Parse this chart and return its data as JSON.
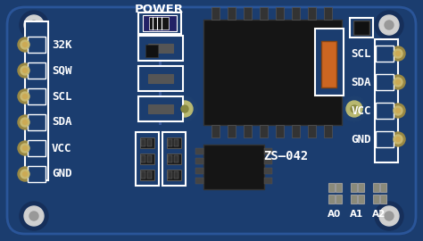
{
  "board_color": "#1b3d6f",
  "board_border": "#2255aa",
  "pin_gold": "#c8b870",
  "pin_light": "#d4c88a",
  "white": "#ffffff",
  "chip_dark": "#151515",
  "chip_gray": "#2a2a2a",
  "orange": "#cc6622",
  "gray_pad": "#8a8a7a",
  "gray_light": "#aaaaaa",
  "left_pins": [
    "32K",
    "SQW",
    "SCL",
    "SDA",
    "VCC",
    "GND"
  ],
  "right_pins": [
    "SCL",
    "SDA",
    "VCC",
    "GND"
  ],
  "figsize": [
    4.74,
    2.7
  ],
  "dpi": 100
}
